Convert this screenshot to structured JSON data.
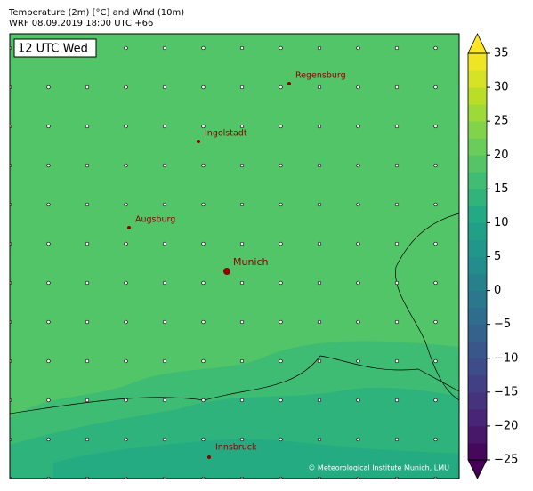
{
  "header": {
    "title": "Temperature (2m) [°C] and Wind (10m)",
    "subtitle": "WRF 08.09.2019 18:00 UTC +66"
  },
  "map": {
    "time_label": "12 UTC Wed",
    "cities": [
      {
        "name": "Regensburg"
      },
      {
        "name": "Ingolstadt"
      },
      {
        "name": "Augsburg"
      },
      {
        "name": "Munich"
      },
      {
        "name": "Innsbruck"
      }
    ],
    "credit": "© Meteorological Institute Munich, LMU"
  },
  "colorbar": {
    "lim": [
      -25,
      35
    ],
    "ticks": [
      35,
      30,
      25,
      20,
      15,
      10,
      5,
      0,
      {
        "value": -5,
        "label": "−5"
      },
      {
        "value": -10,
        "label": "−10"
      },
      {
        "value": -15,
        "label": "−15"
      },
      {
        "value": -20,
        "label": "−20"
      },
      {
        "value": -25,
        "label": "−25"
      }
    ]
  }
}
